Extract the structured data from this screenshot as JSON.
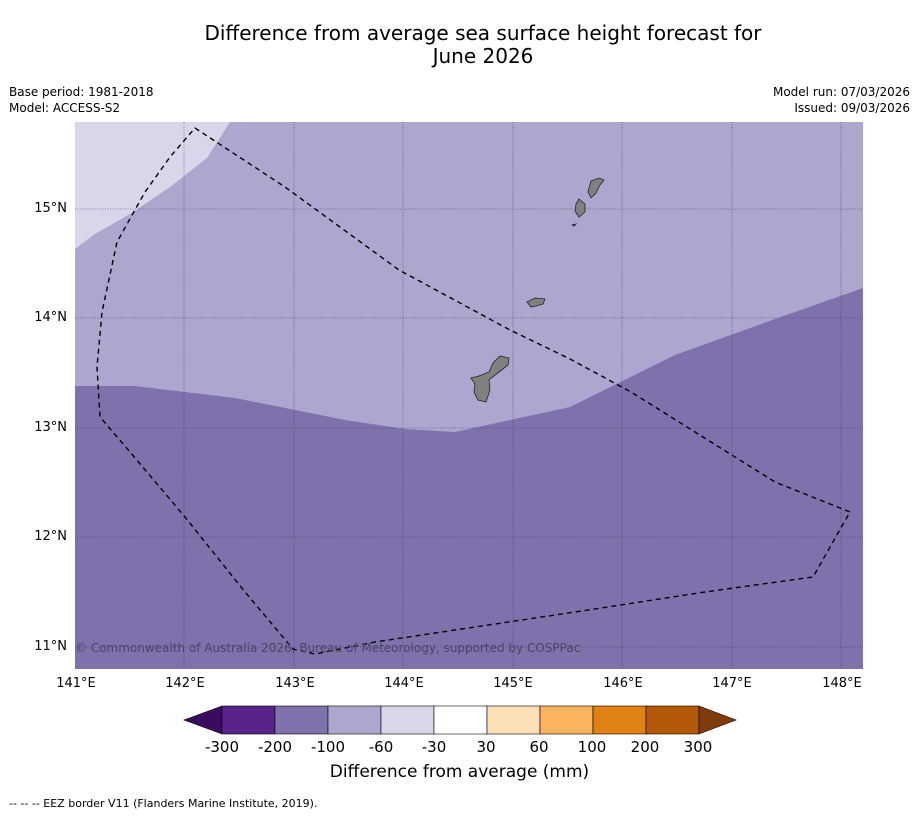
{
  "title": {
    "line1": "Difference from average sea surface height forecast for",
    "line2": "June 2026"
  },
  "meta": {
    "base_period": "Base period: 1981-2018",
    "model": "Model: ACCESS-S2",
    "model_run": "Model run: 07/03/2026",
    "issued": "Issued: 09/03/2026"
  },
  "map": {
    "lat_labels": [
      "15°N",
      "14°N",
      "13°N",
      "12°N",
      "11°N"
    ],
    "lon_labels": [
      "141°E",
      "142°E",
      "143°E",
      "144°E",
      "145°E",
      "146°E",
      "147°E",
      "148°E"
    ],
    "copyright": "© Commonwealth of Australia 2026, Bureau of Meteorology, supported by COSPPac",
    "land_color": "#808080",
    "eez_border_color": "#000000"
  },
  "colorbar": {
    "label": "Difference from average (mm)",
    "ticks": [
      "-300",
      "-200",
      "-100",
      "-60",
      "-30",
      "30",
      "60",
      "100",
      "200",
      "300"
    ],
    "colors": [
      "#3a0b5e",
      "#59228a",
      "#7f72ac",
      "#ada7cf",
      "#d8d7e9",
      "#ffffff",
      "#fde0b8",
      "#fbb35e",
      "#e08114",
      "#b35806",
      "#7f3b08"
    ]
  },
  "footnote": "--  --  -- EEZ border V11 (Flanders Marine Institute, 2019)."
}
